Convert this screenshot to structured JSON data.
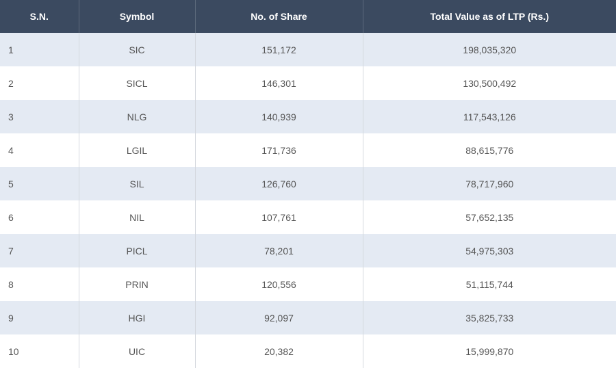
{
  "table": {
    "headers": [
      "S.N.",
      "Symbol",
      "No. of Share",
      "Total Value as of LTP (Rs.)"
    ],
    "rows": [
      [
        "1",
        "SIC",
        "151,172",
        "198,035,320"
      ],
      [
        "2",
        "SICL",
        "146,301",
        "130,500,492"
      ],
      [
        "3",
        "NLG",
        "140,939",
        "117,543,126"
      ],
      [
        "4",
        "LGIL",
        "171,736",
        "88,615,776"
      ],
      [
        "5",
        "SIL",
        "126,760",
        "78,717,960"
      ],
      [
        "6",
        "NIL",
        "107,761",
        "57,652,135"
      ],
      [
        "7",
        "PICL",
        "78,201",
        "54,975,303"
      ],
      [
        "8",
        "PRIN",
        "120,556",
        "51,115,744"
      ],
      [
        "9",
        "HGI",
        "92,097",
        "35,825,733"
      ],
      [
        "10",
        "UIC",
        "20,382",
        "15,999,870"
      ]
    ]
  },
  "colors": {
    "header_bg": "#3b4a60",
    "row_alt_bg": "#e4eaf3",
    "row_bg": "#ffffff"
  }
}
